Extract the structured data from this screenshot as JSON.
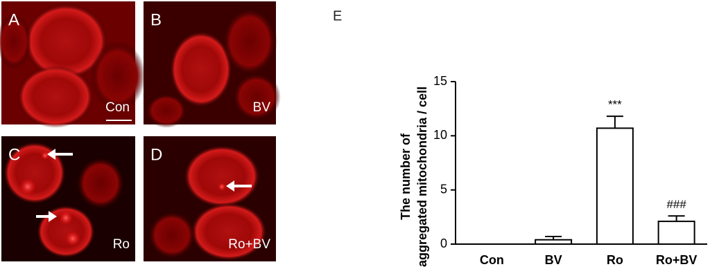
{
  "panels": [
    {
      "letter": "A",
      "label": "Con"
    },
    {
      "letter": "B",
      "label": "BV"
    },
    {
      "letter": "C",
      "label": "Ro"
    },
    {
      "letter": "D",
      "label": "Ro+BV"
    }
  ],
  "chart_label": "E",
  "chart_data": {
    "type": "bar",
    "y_label": [
      "The number of",
      "aggregated mitochondria / cell"
    ],
    "categories": [
      "Con",
      "BV",
      "Ro",
      "Ro+BV"
    ],
    "values": [
      0,
      0.4,
      10.7,
      2.1
    ],
    "errors": [
      0,
      0.3,
      1.1,
      0.5
    ],
    "annotations": [
      null,
      null,
      "***",
      "###"
    ],
    "color": "#ffffff",
    "ylim": [
      0,
      15
    ],
    "yticks": [
      0,
      5,
      10,
      15
    ]
  }
}
